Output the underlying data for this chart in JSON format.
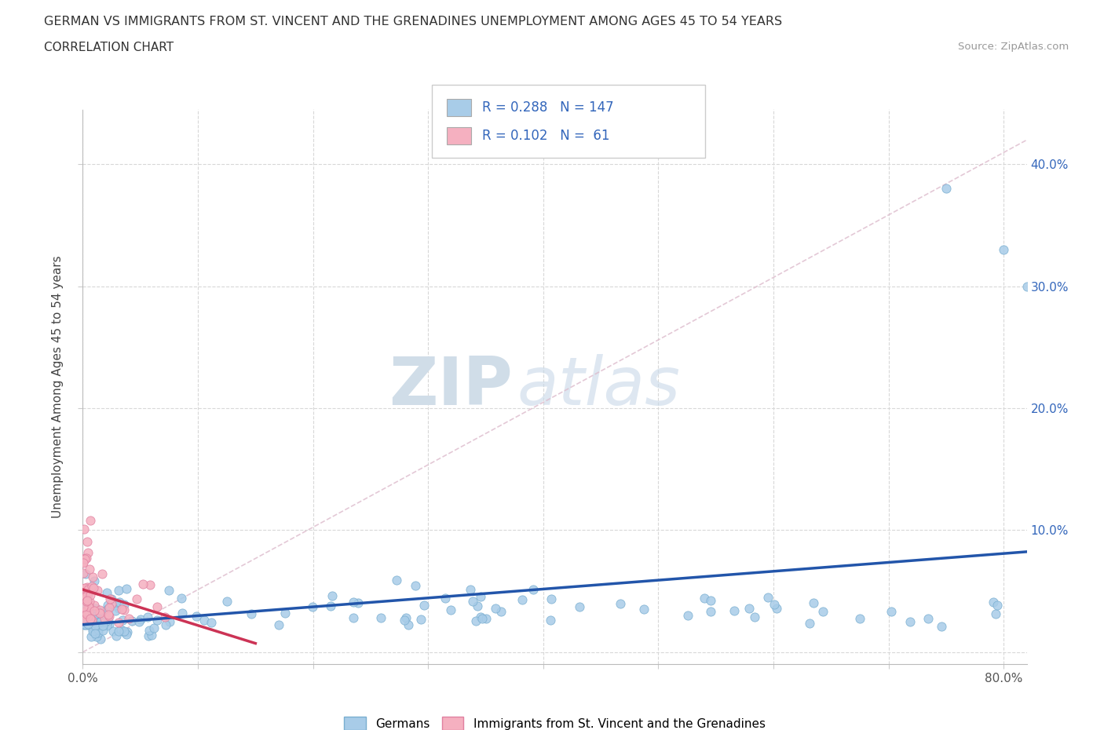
{
  "title": "GERMAN VS IMMIGRANTS FROM ST. VINCENT AND THE GRENADINES UNEMPLOYMENT AMONG AGES 45 TO 54 YEARS",
  "subtitle": "CORRELATION CHART",
  "source": "Source: ZipAtlas.com",
  "ylabel": "Unemployment Among Ages 45 to 54 years",
  "xlim": [
    0.0,
    0.82
  ],
  "ylim": [
    -0.01,
    0.445
  ],
  "xticks": [
    0.0,
    0.1,
    0.2,
    0.3,
    0.4,
    0.5,
    0.6,
    0.7,
    0.8
  ],
  "yticks": [
    0.0,
    0.1,
    0.2,
    0.3,
    0.4
  ],
  "ytick_labels_right": [
    "",
    "10.0%",
    "20.0%",
    "30.0%",
    "40.0%"
  ],
  "german_color": "#a8cce8",
  "german_edge_color": "#7aaed0",
  "svg_color": "#f5b0c0",
  "svg_edge_color": "#e080a0",
  "german_line_color": "#2255aa",
  "svg_line_color": "#cc3355",
  "diag_line_color": "#ddbbcc",
  "german_R": 0.288,
  "german_N": 147,
  "svg_R": 0.102,
  "svg_N": 61,
  "watermark_zip": "ZIP",
  "watermark_atlas": "atlas",
  "legend_label_german": "Germans",
  "legend_label_svg": "Immigrants from St. Vincent and the Grenadines"
}
